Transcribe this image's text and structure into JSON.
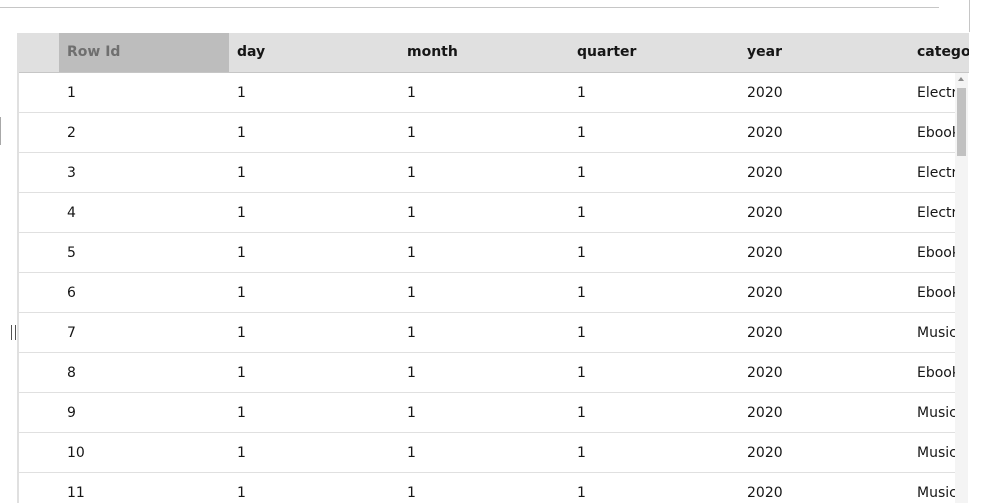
{
  "table": {
    "columns": [
      "Row Id",
      "day",
      "month",
      "quarter",
      "year",
      "categor"
    ],
    "rows": [
      [
        "1",
        "1",
        "1",
        "1",
        "2020",
        "Electr"
      ],
      [
        "2",
        "1",
        "1",
        "1",
        "2020",
        "Ebook"
      ],
      [
        "3",
        "1",
        "1",
        "1",
        "2020",
        "Electr"
      ],
      [
        "4",
        "1",
        "1",
        "1",
        "2020",
        "Electr"
      ],
      [
        "5",
        "1",
        "1",
        "1",
        "2020",
        "Ebook"
      ],
      [
        "6",
        "1",
        "1",
        "1",
        "2020",
        "Ebook"
      ],
      [
        "7",
        "1",
        "1",
        "1",
        "2020",
        "Music"
      ],
      [
        "8",
        "1",
        "1",
        "1",
        "2020",
        "Ebook"
      ],
      [
        "9",
        "1",
        "1",
        "1",
        "2020",
        "Music"
      ],
      [
        "10",
        "1",
        "1",
        "1",
        "2020",
        "Music"
      ],
      [
        "11",
        "1",
        "1",
        "1",
        "2020",
        "Music"
      ]
    ]
  },
  "colors": {
    "header_bg": "#e0e0e0",
    "selected_header_bg": "#bdbdbd",
    "row_divider": "#e0e0e0"
  }
}
